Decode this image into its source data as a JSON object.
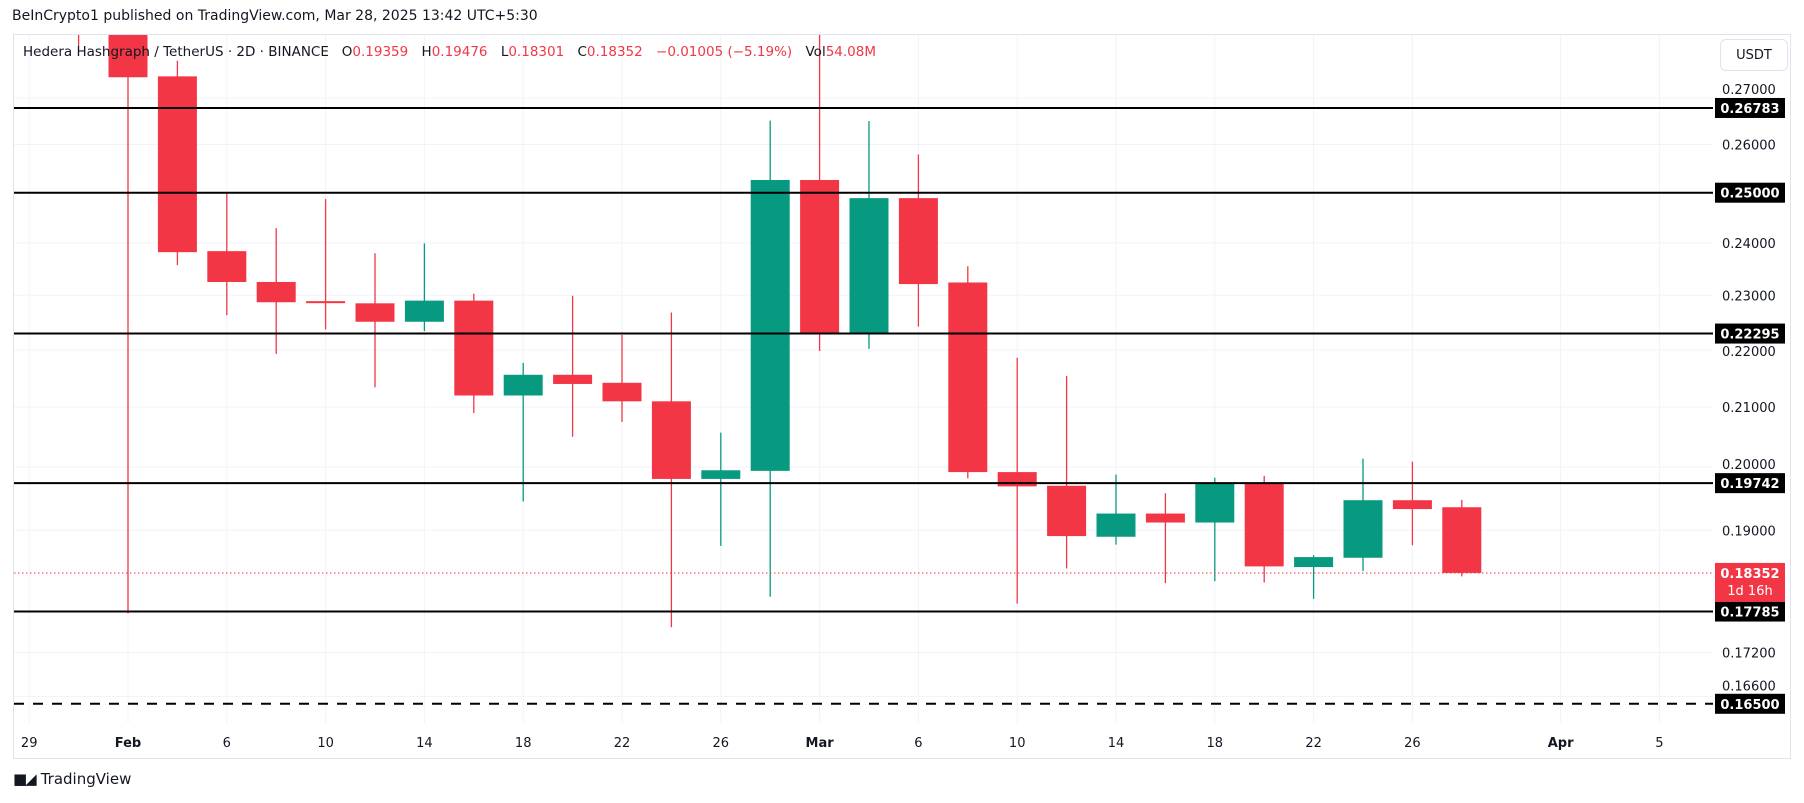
{
  "publish_line": "BeInCrypto1 published on TradingView.com, Mar 28, 2025 13:42 UTC+5:30",
  "legend": {
    "symbol": "Hedera Hashgraph / TetherUS · 2D · BINANCE",
    "open_label": "O",
    "open": "0.19359",
    "high_label": "H",
    "high": "0.19476",
    "low_label": "L",
    "low": "0.18301",
    "close_label": "C",
    "close": "0.18352",
    "change": "−0.01005 (−5.19%)",
    "vol_label": "Vol",
    "vol": "54.08M"
  },
  "currency_button": "USDT",
  "current_price": {
    "label": "0.18352",
    "countdown": "1d 16h",
    "color": "#F23645"
  },
  "brand": "TradingView",
  "colors": {
    "up": "#089981",
    "down": "#F23645",
    "level_line": "#000000",
    "grid": "#f0f3fa"
  },
  "chart_data": {
    "type": "candlestick",
    "interval": "2D",
    "y_scale": "log",
    "ylim": [
      0.1605,
      0.2842
    ],
    "xlim": [
      "2025-01-27",
      "2025-04-07"
    ],
    "grid": true,
    "y_ticks": [
      "0.27000",
      "0.26000",
      "0.24000",
      "0.23000",
      "0.22000",
      "0.21000",
      "0.20000",
      "0.19000",
      "0.17200",
      "0.16600"
    ],
    "x_ticks": [
      {
        "date": "2025-01-29",
        "label": "29",
        "bold": false
      },
      {
        "date": "2025-02-02",
        "label": "Feb",
        "bold": true
      },
      {
        "date": "2025-02-06",
        "label": "6",
        "bold": false
      },
      {
        "date": "2025-02-10",
        "label": "10",
        "bold": false
      },
      {
        "date": "2025-02-14",
        "label": "14",
        "bold": false
      },
      {
        "date": "2025-02-18",
        "label": "18",
        "bold": false
      },
      {
        "date": "2025-02-22",
        "label": "22",
        "bold": false
      },
      {
        "date": "2025-02-26",
        "label": "26",
        "bold": false
      },
      {
        "date": "2025-03-02",
        "label": "Mar",
        "bold": true
      },
      {
        "date": "2025-03-06",
        "label": "6",
        "bold": false
      },
      {
        "date": "2025-03-10",
        "label": "10",
        "bold": false
      },
      {
        "date": "2025-03-14",
        "label": "14",
        "bold": false
      },
      {
        "date": "2025-03-18",
        "label": "18",
        "bold": false
      },
      {
        "date": "2025-03-22",
        "label": "22",
        "bold": false
      },
      {
        "date": "2025-03-26",
        "label": "26",
        "bold": false
      },
      {
        "date": "2025-04-01",
        "label": "Apr",
        "bold": true
      },
      {
        "date": "2025-04-05",
        "label": "5",
        "bold": false
      }
    ],
    "levels": [
      {
        "price": 0.26783,
        "label": "0.26783",
        "style": "solid"
      },
      {
        "price": 0.25,
        "label": "0.25000",
        "style": "solid"
      },
      {
        "price": 0.22295,
        "label": "0.22295",
        "style": "solid"
      },
      {
        "price": 0.19742,
        "label": "0.19742",
        "style": "solid"
      },
      {
        "price": 0.17785,
        "label": "0.17785",
        "style": "solid"
      },
      {
        "price": 0.165,
        "label": "0.16500",
        "style": "dashed"
      }
    ],
    "last_price": 0.18352,
    "candles": [
      {
        "date": "2025-01-31",
        "o": 0.3,
        "h": 0.305,
        "l": 0.2816,
        "c": 0.29
      },
      {
        "date": "2025-02-02",
        "o": 0.288,
        "h": 0.29,
        "l": 0.1776,
        "c": 0.2746
      },
      {
        "date": "2025-02-04",
        "o": 0.2748,
        "h": 0.2783,
        "l": 0.2357,
        "c": 0.2382
      },
      {
        "date": "2025-02-06",
        "o": 0.2384,
        "h": 0.2498,
        "l": 0.2263,
        "c": 0.2325
      },
      {
        "date": "2025-02-08",
        "o": 0.2325,
        "h": 0.2429,
        "l": 0.2193,
        "c": 0.2287
      },
      {
        "date": "2025-02-10",
        "o": 0.2289,
        "h": 0.2487,
        "l": 0.2237,
        "c": 0.2286
      },
      {
        "date": "2025-02-12",
        "o": 0.2285,
        "h": 0.238,
        "l": 0.2134,
        "c": 0.2251
      },
      {
        "date": "2025-02-14",
        "o": 0.2251,
        "h": 0.2399,
        "l": 0.2234,
        "c": 0.229
      },
      {
        "date": "2025-02-16",
        "o": 0.229,
        "h": 0.2303,
        "l": 0.209,
        "c": 0.212
      },
      {
        "date": "2025-02-18",
        "o": 0.212,
        "h": 0.2177,
        "l": 0.1945,
        "c": 0.2156
      },
      {
        "date": "2025-02-20",
        "o": 0.2156,
        "h": 0.2299,
        "l": 0.205,
        "c": 0.214
      },
      {
        "date": "2025-02-22",
        "o": 0.2142,
        "h": 0.2227,
        "l": 0.2075,
        "c": 0.211
      },
      {
        "date": "2025-02-24",
        "o": 0.211,
        "h": 0.2268,
        "l": 0.1756,
        "c": 0.1981
      },
      {
        "date": "2025-02-26",
        "o": 0.1981,
        "h": 0.2057,
        "l": 0.1876,
        "c": 0.1995
      },
      {
        "date": "2025-02-28",
        "o": 0.1994,
        "h": 0.2651,
        "l": 0.18,
        "c": 0.2526
      },
      {
        "date": "2025-03-02",
        "o": 0.2526,
        "h": 0.2846,
        "l": 0.2198,
        "c": 0.2229
      },
      {
        "date": "2025-03-04",
        "o": 0.2229,
        "h": 0.265,
        "l": 0.2202,
        "c": 0.2489
      },
      {
        "date": "2025-03-06",
        "o": 0.2489,
        "h": 0.2579,
        "l": 0.2242,
        "c": 0.2321
      },
      {
        "date": "2025-03-08",
        "o": 0.2324,
        "h": 0.2355,
        "l": 0.1982,
        "c": 0.1992
      },
      {
        "date": "2025-03-10",
        "o": 0.1992,
        "h": 0.2186,
        "l": 0.179,
        "c": 0.1969
      },
      {
        "date": "2025-03-12",
        "o": 0.197,
        "h": 0.2154,
        "l": 0.1842,
        "c": 0.1891
      },
      {
        "date": "2025-03-14",
        "o": 0.189,
        "h": 0.1988,
        "l": 0.1878,
        "c": 0.1926
      },
      {
        "date": "2025-03-16",
        "o": 0.1926,
        "h": 0.1958,
        "l": 0.182,
        "c": 0.1912
      },
      {
        "date": "2025-03-18",
        "o": 0.1912,
        "h": 0.1983,
        "l": 0.1823,
        "c": 0.1974
      },
      {
        "date": "2025-03-20",
        "o": 0.1974,
        "h": 0.1986,
        "l": 0.1821,
        "c": 0.1845
      },
      {
        "date": "2025-03-22",
        "o": 0.1844,
        "h": 0.1862,
        "l": 0.1797,
        "c": 0.1859
      },
      {
        "date": "2025-03-24",
        "o": 0.1858,
        "h": 0.2014,
        "l": 0.1838,
        "c": 0.1947
      },
      {
        "date": "2025-03-26",
        "o": 0.1947,
        "h": 0.2009,
        "l": 0.1877,
        "c": 0.1933
      },
      {
        "date": "2025-03-28",
        "o": 0.19359,
        "h": 0.19476,
        "l": 0.18301,
        "c": 0.18352
      }
    ]
  }
}
